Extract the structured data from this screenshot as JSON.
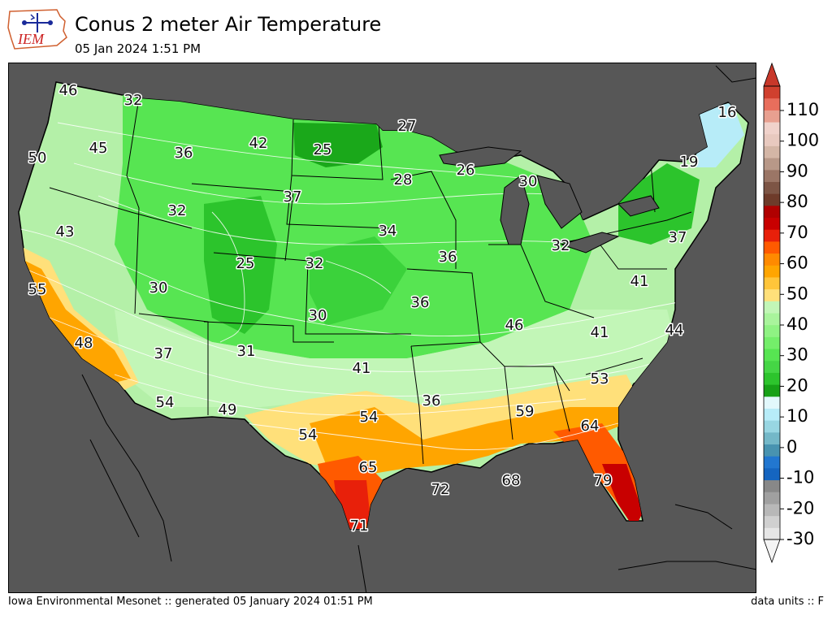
{
  "header": {
    "title": "Conus 2 meter Air Temperature",
    "subtitle": "05 Jan 2024 1:51 PM",
    "logo_text": "IEM"
  },
  "footer": {
    "left": "Iowa Environmental Mesonet :: generated 05 January 2024 01:51 PM",
    "right": "data units :: F"
  },
  "colors": {
    "ocean": "#575757",
    "land_cool": "#b4f0a8",
    "land_mid": "#57e552",
    "land_dark": "#1aa81a",
    "warm_yellow": "#ffe07a",
    "warm_orange": "#ffa500",
    "hot_red": "#e8200a",
    "cold_cyan": "#b7ecf8"
  },
  "temperature_labels": [
    {
      "value": "46"
    },
    {
      "value": "32"
    },
    {
      "value": "50"
    },
    {
      "value": "45"
    },
    {
      "value": "36"
    },
    {
      "value": "42"
    },
    {
      "value": "25"
    },
    {
      "value": "27"
    },
    {
      "value": "26"
    },
    {
      "value": "30"
    },
    {
      "value": "16"
    },
    {
      "value": "19"
    },
    {
      "value": "28"
    },
    {
      "value": "37"
    },
    {
      "value": "32"
    },
    {
      "value": "43"
    },
    {
      "value": "34"
    },
    {
      "value": "25"
    },
    {
      "value": "32"
    },
    {
      "value": "36"
    },
    {
      "value": "32"
    },
    {
      "value": "37"
    },
    {
      "value": "55"
    },
    {
      "value": "30"
    },
    {
      "value": "41"
    },
    {
      "value": "36"
    },
    {
      "value": "30"
    },
    {
      "value": "46"
    },
    {
      "value": "48"
    },
    {
      "value": "37"
    },
    {
      "value": "31"
    },
    {
      "value": "41"
    },
    {
      "value": "41"
    },
    {
      "value": "44"
    },
    {
      "value": "53"
    },
    {
      "value": "54"
    },
    {
      "value": "49"
    },
    {
      "value": "36"
    },
    {
      "value": "59"
    },
    {
      "value": "54"
    },
    {
      "value": "54"
    },
    {
      "value": "64"
    },
    {
      "value": "65"
    },
    {
      "value": "72"
    },
    {
      "value": "68"
    },
    {
      "value": "79"
    },
    {
      "value": "71"
    }
  ],
  "colorbar": {
    "tick_labels": [
      "110",
      "100",
      "90",
      "80",
      "70",
      "60",
      "50",
      "40",
      "30",
      "20",
      "10",
      "0",
      "-10",
      "-20",
      "-30"
    ],
    "swatches": [
      "#e6e6e6",
      "#d0d0d0",
      "#b8b8b8",
      "#a0a0a0",
      "#888888",
      "#1565c0",
      "#2277d0",
      "#4893b0",
      "#74b8c8",
      "#98d6e2",
      "#b7ecf8",
      "#e2f8fc",
      "#17a117",
      "#2dc42d",
      "#45d645",
      "#57e552",
      "#74ee6a",
      "#8ff283",
      "#a9f49c",
      "#c2f6b7",
      "#ffe07a",
      "#ffc53a",
      "#ffa500",
      "#ff8a00",
      "#ff5a00",
      "#e8200a",
      "#c80000",
      "#b00000",
      "#6e3b2a",
      "#7d5545",
      "#9b7666",
      "#b89888",
      "#d4b6a6",
      "#e8c9bf",
      "#f0d2cb",
      "#e8a090",
      "#e86e5c",
      "#d0402e"
    ],
    "top_arrow_color": "#c8382a",
    "bottom_arrow_color": "#f4f4f4"
  }
}
